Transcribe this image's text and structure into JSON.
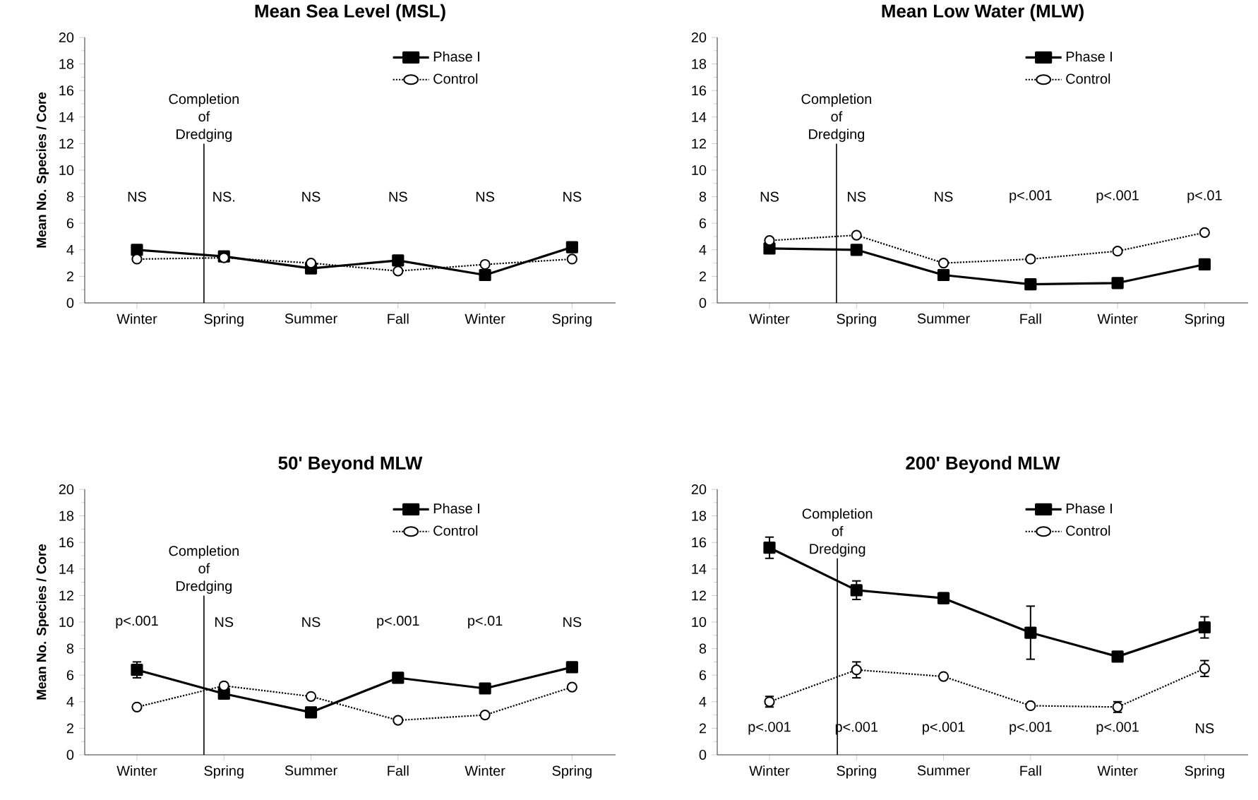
{
  "chart_data": [
    {
      "type": "line",
      "title": "Mean Sea Level (MSL)",
      "ylabel": "Mean No. Species / Core",
      "categories": [
        "Winter",
        "Spring",
        "Summer",
        "Fall",
        "Winter",
        "Spring"
      ],
      "ylim": [
        0,
        20
      ],
      "yticks": [
        0,
        2,
        4,
        6,
        8,
        10,
        12,
        14,
        16,
        18,
        20
      ],
      "legend": "top right",
      "series": [
        {
          "name": "Phase I",
          "color": "#000000",
          "marker": "square",
          "line_style": "solid",
          "values": [
            4.0,
            3.5,
            2.6,
            3.2,
            2.1,
            4.2
          ]
        },
        {
          "name": "Control",
          "color": "#000000",
          "marker": "circle",
          "line_style": "dotted",
          "values": [
            3.3,
            3.4,
            3.0,
            2.4,
            2.9,
            3.3
          ]
        }
      ],
      "annotations": [
        "Completion of Dredging",
        "NS",
        "NS.",
        "NS",
        "NS",
        "NS",
        "NS"
      ]
    },
    {
      "type": "line",
      "title": "Mean Low Water (MLW)",
      "categories": [
        "Winter",
        "Spring",
        "Summer",
        "Fall",
        "Winter",
        "Spring"
      ],
      "ylim": [
        0,
        20
      ],
      "yticks": [
        0,
        2,
        4,
        6,
        8,
        10,
        12,
        14,
        16,
        18,
        20
      ],
      "legend": "top right",
      "series": [
        {
          "name": "Phase I",
          "color": "#000000",
          "marker": "square",
          "line_style": "solid",
          "values": [
            4.1,
            4.0,
            2.1,
            1.4,
            1.5,
            2.9
          ]
        },
        {
          "name": "Control",
          "color": "#000000",
          "marker": "circle",
          "line_style": "dotted",
          "values": [
            4.7,
            5.1,
            3.0,
            3.3,
            3.9,
            5.3
          ]
        }
      ],
      "annotations": [
        "Completion of Dredging",
        "NS",
        "NS",
        "NS",
        "p<.001",
        "p<.001",
        "p<.01"
      ]
    },
    {
      "type": "line",
      "title": "50' Beyond MLW",
      "ylabel": "Mean No. Species / Core",
      "categories": [
        "Winter",
        "Spring",
        "Summer",
        "Fall",
        "Winter",
        "Spring"
      ],
      "ylim": [
        0,
        20
      ],
      "yticks": [
        0,
        2,
        4,
        6,
        8,
        10,
        12,
        14,
        16,
        18,
        20
      ],
      "legend": "top right",
      "series": [
        {
          "name": "Phase I",
          "color": "#000000",
          "marker": "square",
          "line_style": "solid",
          "values": [
            6.4,
            4.6,
            3.2,
            5.8,
            5.0,
            6.6
          ],
          "errors": [
            0.6,
            null,
            null,
            null,
            null,
            null
          ]
        },
        {
          "name": "Control",
          "color": "#000000",
          "marker": "circle",
          "line_style": "dotted",
          "values": [
            3.6,
            5.2,
            4.4,
            2.6,
            3.0,
            5.1
          ]
        }
      ],
      "annotations": [
        "Completion of Dredging",
        "p<.001",
        "NS",
        "NS",
        "p<.001",
        "p<.01",
        "NS"
      ]
    },
    {
      "type": "line",
      "title": "200' Beyond MLW",
      "categories": [
        "Winter",
        "Spring",
        "Summer",
        "Fall",
        "Winter",
        "Spring"
      ],
      "ylim": [
        0,
        20
      ],
      "yticks": [
        0,
        2,
        4,
        6,
        8,
        10,
        12,
        14,
        16,
        18,
        20
      ],
      "legend": "top right",
      "series": [
        {
          "name": "Phase I",
          "color": "#000000",
          "marker": "square",
          "line_style": "solid",
          "values": [
            15.6,
            12.4,
            11.8,
            9.2,
            7.4,
            9.6
          ],
          "errors": [
            0.8,
            0.7,
            0.4,
            2.0,
            null,
            0.8
          ]
        },
        {
          "name": "Control",
          "color": "#000000",
          "marker": "circle",
          "line_style": "dotted",
          "values": [
            4.0,
            6.4,
            5.9,
            3.7,
            3.6,
            6.5
          ],
          "errors": [
            0.4,
            0.6,
            null,
            null,
            0.4,
            0.6
          ]
        }
      ],
      "annotations": [
        "Completion of Dredging",
        "p<.001",
        "p<.001",
        "p<.001",
        "p<.001",
        "p<.001",
        "NS"
      ]
    }
  ]
}
